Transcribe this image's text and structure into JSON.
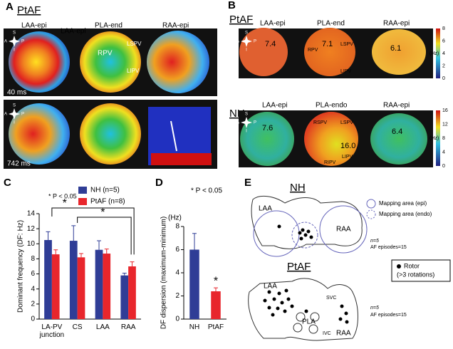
{
  "panels": {
    "A": {
      "letter": "A",
      "title": "PtAF",
      "maps": [
        "LAA-epi",
        "PLA-end",
        "RAA-epi"
      ],
      "times": [
        "40 ms",
        "742 ms"
      ],
      "veins": [
        "RPV",
        "LSPV",
        "LIPV"
      ]
    },
    "B": {
      "letter": "B",
      "rows": [
        {
          "title": "PtAF",
          "maps": [
            "LAA-epi",
            "PLA-end",
            "RAA-epi"
          ],
          "df": [
            "7.4",
            "7.1",
            "6.1"
          ],
          "veins": [
            "RPV",
            "LSPV",
            "LIPV"
          ],
          "scale": [
            "8",
            "6",
            "4",
            "2",
            "0"
          ],
          "unit": "(Hz)"
        },
        {
          "title": "NH",
          "maps": [
            "LAA-epi",
            "PLA-endo",
            "RAA-epi"
          ],
          "df": [
            "7.6",
            "16.0",
            "6.4"
          ],
          "veins": [
            "RSPV",
            "LSPV",
            "LIPV",
            "RIPV"
          ],
          "scale": [
            "16",
            "12",
            "8",
            "4",
            "0"
          ],
          "unit": "(Hz)"
        }
      ]
    },
    "orientation": [
      "S",
      "A",
      "P",
      "I"
    ],
    "C": {
      "letter": "C"
    },
    "D": {
      "letter": "D"
    },
    "E": {
      "letter": "E",
      "top": {
        "title": "NH",
        "labels": [
          "LAA",
          "RAA"
        ],
        "n": "n=5",
        "episodes": "AF episodes=15"
      },
      "bottom": {
        "title": "PtAF",
        "labels": [
          "LAA",
          "SVC",
          "PLA",
          "IVC",
          "RAA"
        ],
        "n": "n=5",
        "episodes": "AF episodes=15"
      },
      "legend": [
        "Mapping area (epi)",
        "Mapping area (endo)",
        "Rotor",
        "(>3 rotations)"
      ]
    }
  },
  "chart_data": [
    {
      "type": "bar",
      "y_label": "Dominant frequency (DF: Hz)",
      "categories": [
        "LA-PV junction",
        "CS",
        "LAA",
        "RAA"
      ],
      "series": [
        {
          "name": "NH (n=5)",
          "color": "#2f3d96",
          "values": [
            10.5,
            10.4,
            9.2,
            5.8
          ],
          "errors": [
            1.1,
            2.0,
            1.2,
            0.3
          ]
        },
        {
          "name": "PtAF (n=8)",
          "color": "#e8262c",
          "values": [
            8.6,
            8.2,
            8.7,
            7.0
          ],
          "errors": [
            0.6,
            0.5,
            0.6,
            0.6
          ]
        }
      ],
      "ylim": [
        0,
        14
      ],
      "yticks": [
        0,
        2,
        4,
        6,
        8,
        10,
        12,
        14
      ],
      "annotations": [
        "* P < 0.05",
        "*",
        "*"
      ]
    },
    {
      "type": "bar",
      "y_label": "DF dispersion (maximum-minimum)",
      "unit": "(Hz)",
      "categories": [
        "NH",
        "PtAF"
      ],
      "series": [
        {
          "colors": [
            "#2f3d96",
            "#e8262c"
          ],
          "values": [
            6.0,
            2.4
          ],
          "errors": [
            1.4,
            0.3
          ]
        }
      ],
      "ylim": [
        0,
        8
      ],
      "yticks": [
        0,
        2,
        4,
        6,
        8
      ],
      "annotations": [
        "* P < 0.05",
        "*"
      ]
    }
  ]
}
